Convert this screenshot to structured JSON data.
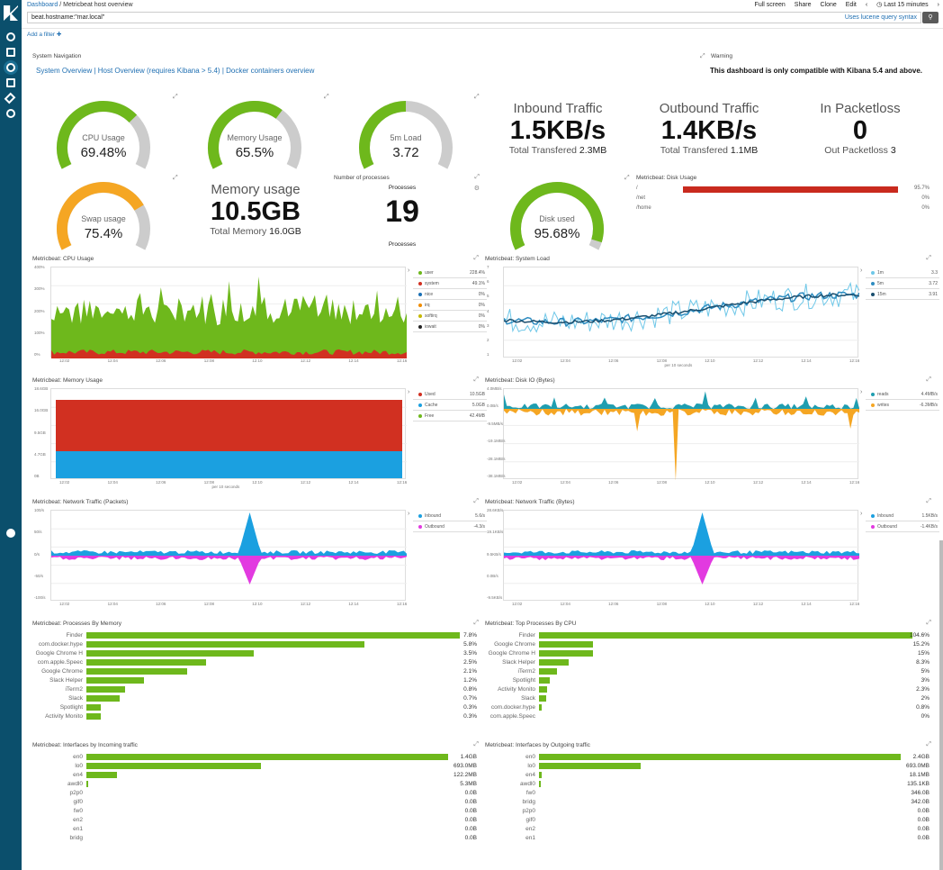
{
  "breadcrumb": {
    "root": "Dashboard",
    "sep": "/",
    "title": "Metricbeat host overview"
  },
  "topmenu": [
    "Full screen",
    "Share",
    "Clone",
    "Edit"
  ],
  "timepicker": {
    "prev": "‹",
    "label": "Last 15 minutes",
    "next": "›"
  },
  "query": {
    "value": "beat.hostname:\"mar.local\"",
    "hint": "Uses lucene query syntax"
  },
  "filter_label": "Add a filter ✚",
  "nav_title": "System Navigation",
  "nav_links": "System Overview | Host Overview (requires Kibana > 5.4) | Docker containers overview",
  "warning_title": "Warning",
  "warning_text": "This dashboard is only compatible with Kibana 5.4 and above.",
  "gauges": {
    "cpu": {
      "label": "CPU Usage",
      "value": "69.48%",
      "fraction": 0.6948,
      "color": "#6eb81c"
    },
    "mem": {
      "label": "Memory Usage",
      "value": "65.5%",
      "fraction": 0.655,
      "color": "#6eb81c"
    },
    "load": {
      "label": "5m Load",
      "value": "3.72",
      "fraction": 0.5,
      "color": "#6eb81c"
    },
    "swap": {
      "label": "Swap usage",
      "value": "75.4%",
      "fraction": 0.754,
      "color": "#f5a623"
    },
    "disk": {
      "label": "Disk used",
      "value": "95.68%",
      "fraction": 0.9568,
      "color": "#6eb81c"
    }
  },
  "inbound": {
    "title": "Inbound Traffic",
    "value": "1.5KB/s",
    "sub_label": "Total Transfered",
    "sub_value": "2.3MB"
  },
  "outbound": {
    "title": "Outbound Traffic",
    "value": "1.4KB/s",
    "sub_label": "Total Transfered",
    "sub_value": "1.1MB"
  },
  "packetloss": {
    "title": "In Packetloss",
    "value": "0",
    "sub_label": "Out Packetloss",
    "sub_value": "3"
  },
  "memusage": {
    "title": "Memory usage",
    "value": "10.5GB",
    "sub_label": "Total Memory",
    "sub_value": "16.0GB"
  },
  "processes": {
    "title": "Number of processes",
    "head": "Processes",
    "value": "19",
    "foot": "Processes"
  },
  "diskusage": {
    "title": "Metricbeat: Disk Usage",
    "rows": [
      {
        "label": "/",
        "value": "95.7%",
        "frac": 0.957
      },
      {
        "label": "/net",
        "value": "0%",
        "frac": 0
      },
      {
        "label": "/home",
        "value": "0%",
        "frac": 0
      }
    ]
  },
  "cpu_chart": {
    "title": "Metricbeat: CPU Usage",
    "yticks": [
      "400%",
      "300%",
      "200%",
      "100%",
      "0%"
    ],
    "xticks": [
      "12:02",
      "12:04",
      "12:06",
      "12:08",
      "12:10",
      "12:12",
      "12:14",
      "12:16"
    ],
    "legend": [
      {
        "name": "user",
        "value": "228.4%",
        "color": "#6eb81c"
      },
      {
        "name": "system",
        "value": "49.1%",
        "color": "#d13021"
      },
      {
        "name": "nice",
        "value": "0%",
        "color": "#1a6fb5"
      },
      {
        "name": "irq",
        "value": "0%",
        "color": "#f08c00"
      },
      {
        "name": "softirq",
        "value": "0%",
        "color": "#c5b800"
      },
      {
        "name": "iowait",
        "value": "0%",
        "color": "#222"
      }
    ]
  },
  "load_chart": {
    "title": "Metricbeat: System Load",
    "yticks": [
      "7",
      "6",
      "5",
      "4",
      "3",
      "2",
      "1"
    ],
    "xticks": [
      "12:02",
      "12:04",
      "12:06",
      "12:08",
      "12:10",
      "12:12",
      "12:14",
      "12:16"
    ],
    "xlabel": "per 10 seconds",
    "legend": [
      {
        "name": "1m",
        "value": "3.3",
        "color": "#6ec7e8"
      },
      {
        "name": "5m",
        "value": "3.72",
        "color": "#2e8cc0"
      },
      {
        "name": "15m",
        "value": "3.91",
        "color": "#1a4e6e"
      }
    ]
  },
  "mem_chart": {
    "title": "Metricbeat: Memory Usage",
    "yticks": [
      "18.6GB",
      "16.0GB",
      "9.5GB",
      "4.7GB",
      "0B"
    ],
    "xticks": [
      "12:02",
      "12:04",
      "12:06",
      "12:08",
      "12:10",
      "12:12",
      "12:14",
      "12:16"
    ],
    "xlabel": "per 10 seconds",
    "legend": [
      {
        "name": "Used",
        "value": "10.5GB",
        "color": "#d13021"
      },
      {
        "name": "Cache",
        "value": "5.0GB",
        "color": "#1ba0e0"
      },
      {
        "name": "Free",
        "value": "42.4MB",
        "color": "#6eb81c"
      }
    ]
  },
  "diskio_chart": {
    "title": "Metricbeat: Disk IO (Bytes)",
    "yticks": [
      "4.0MB/s",
      "0.0B/s",
      "-9.5MB/s",
      "-19.1MB/s",
      "-28.1MB/s",
      "-38.1MB/s"
    ],
    "xticks": [
      "12:02",
      "12:04",
      "12:06",
      "12:08",
      "12:10",
      "12:12",
      "12:14",
      "12:16"
    ],
    "legend": [
      {
        "name": "reads",
        "value": "4.4MB/s",
        "color": "#1f9eb0"
      },
      {
        "name": "writes",
        "value": "-6.3MB/s",
        "color": "#f5a623"
      }
    ]
  },
  "netp_chart": {
    "title": "Metricbeat: Network Traffic (Packets)",
    "yticks": [
      "100/s",
      "50/s",
      "0/s",
      "-50/s",
      "-100/s"
    ],
    "xticks": [
      "12:02",
      "12:04",
      "12:06",
      "12:08",
      "12:10",
      "12:12",
      "12:14",
      "12:16"
    ],
    "legend": [
      {
        "name": "Inbound",
        "value": "5.6/s",
        "color": "#1ba0e0"
      },
      {
        "name": "Outbound",
        "value": "-4.3/s",
        "color": "#e23ae0"
      }
    ]
  },
  "netb_chart": {
    "title": "Metricbeat: Network Traffic (Bytes)",
    "yticks": [
      "28.6KB/s",
      "19.1KB/s",
      "9.5KB/s",
      "0.0B/s",
      "-9.5KB/s"
    ],
    "xticks": [
      "12:02",
      "12:04",
      "12:06",
      "12:08",
      "12:10",
      "12:12",
      "12:14",
      "12:16"
    ],
    "legend": [
      {
        "name": "Inbound",
        "value": "1.5KB/s",
        "color": "#1ba0e0"
      },
      {
        "name": "Outbound",
        "value": "-1.4KB/s",
        "color": "#e23ae0"
      }
    ]
  },
  "proc_mem": {
    "title": "Metricbeat: Processes By Memory",
    "max": 7.8,
    "rows": [
      [
        "Finder",
        7.8,
        "7.8%"
      ],
      [
        "com.docker.hype",
        5.8,
        "5.8%"
      ],
      [
        "Google Chrome H",
        3.5,
        "3.5%"
      ],
      [
        "com.apple.Speec",
        2.5,
        "2.5%"
      ],
      [
        "Google Chrome",
        2.1,
        "2.1%"
      ],
      [
        "Slack Helper",
        1.2,
        "1.2%"
      ],
      [
        "iTerm2",
        0.8,
        "0.8%"
      ],
      [
        "Slack",
        0.7,
        "0.7%"
      ],
      [
        "Spotlight",
        0.3,
        "0.3%"
      ],
      [
        "Activity Monito",
        0.3,
        "0.3%"
      ]
    ]
  },
  "proc_cpu": {
    "title": "Metricbeat: Top Processes By CPU",
    "max": 104.6,
    "rows": [
      [
        "Finder",
        104.6,
        "104.6%"
      ],
      [
        "Google Chrome",
        15.2,
        "15.2%"
      ],
      [
        "Google Chrome H",
        15,
        "15%"
      ],
      [
        "Slack Helper",
        8.3,
        "8.3%"
      ],
      [
        "iTerm2",
        5,
        "5%"
      ],
      [
        "Spotlight",
        3,
        "3%"
      ],
      [
        "Activity Monito",
        2.3,
        "2.3%"
      ],
      [
        "Slack",
        2,
        "2%"
      ],
      [
        "com.docker.hype",
        0.8,
        "0.8%"
      ],
      [
        "com.apple.Speec",
        0,
        "0%"
      ]
    ]
  },
  "if_in": {
    "title": "Metricbeat: Interfaces by Incoming traffic",
    "max": 1433.6,
    "rows": [
      [
        "en0",
        1433.6,
        "1.4GB"
      ],
      [
        "lo0",
        693,
        "693.0MB"
      ],
      [
        "en4",
        122.2,
        "122.2MB"
      ],
      [
        "awdl0",
        5.3,
        "5.3MB"
      ],
      [
        "p2p0",
        0,
        "0.0B"
      ],
      [
        "gif0",
        0,
        "0.0B"
      ],
      [
        "fw0",
        0,
        "0.0B"
      ],
      [
        "en2",
        0,
        "0.0B"
      ],
      [
        "en1",
        0,
        "0.0B"
      ],
      [
        "bridg",
        0,
        "0.0B"
      ]
    ]
  },
  "if_out": {
    "title": "Metricbeat: Interfaces by Outgoing traffic",
    "max": 2457.6,
    "rows": [
      [
        "en0",
        2457.6,
        "2.4GB"
      ],
      [
        "lo0",
        693,
        "693.0MB"
      ],
      [
        "en4",
        18.1,
        "18.1MB"
      ],
      [
        "awdl0",
        0.135,
        "135.1KB"
      ],
      [
        "fw0",
        0,
        "346.0B"
      ],
      [
        "bridg",
        0,
        "342.0B"
      ],
      [
        "p2p0",
        0,
        "0.0B"
      ],
      [
        "gif0",
        0,
        "0.0B"
      ],
      [
        "en2",
        0,
        "0.0B"
      ],
      [
        "en1",
        0,
        "0.0B"
      ]
    ]
  }
}
